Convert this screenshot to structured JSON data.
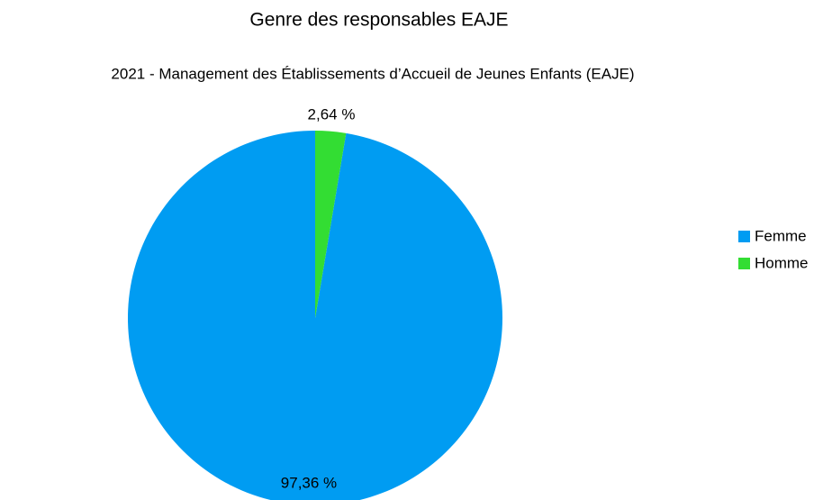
{
  "chart_data": {
    "type": "pie",
    "title": "Genre des responsables EAJE",
    "subtitle": "2021 - Management des Établissements d’Accueil de Jeunes Enfants (EAJE)",
    "categories": [
      "Femme",
      "Homme"
    ],
    "values": [
      97.36,
      2.64
    ],
    "value_labels": [
      "97,36 %",
      "2,64 %"
    ],
    "colors": [
      "#009cf2",
      "#33dd33"
    ],
    "legend": "right"
  }
}
